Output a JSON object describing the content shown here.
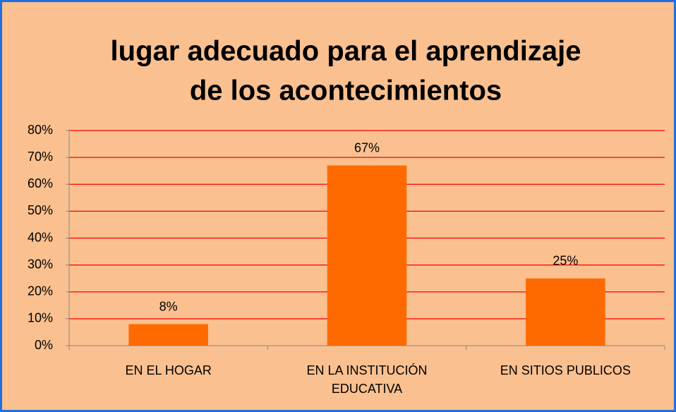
{
  "chart_data": {
    "type": "bar",
    "title": [
      "lugar adecuado para el aprendizaje",
      "de los acontecimientos"
    ],
    "categories": [
      "EN EL HOGAR",
      "EN LA INSTITUCIÓN EDUCATIVA",
      "EN SITIOS PUBLICOS"
    ],
    "values": [
      8,
      67,
      25
    ],
    "value_labels": [
      "8%",
      "67%",
      "25%"
    ],
    "color": "#ff6a00",
    "ylim": [
      0,
      80
    ],
    "yticks": [
      {
        "value": 0,
        "label": "0%"
      },
      {
        "value": 10,
        "label": "10%"
      },
      {
        "value": 20,
        "label": "20%"
      },
      {
        "value": 30,
        "label": "30%"
      },
      {
        "value": 40,
        "label": "40%"
      },
      {
        "value": 50,
        "label": "50%"
      },
      {
        "value": 60,
        "label": "60%"
      },
      {
        "value": 70,
        "label": "70%"
      },
      {
        "value": 80,
        "label": "80%"
      }
    ],
    "grid": true,
    "grid_color": "#ff0000"
  }
}
